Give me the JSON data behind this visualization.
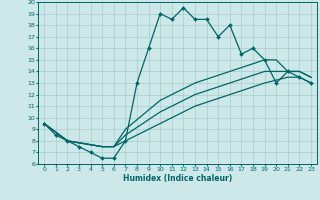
{
  "xlabel": "Humidex (Indice chaleur)",
  "bg_color": "#cce8e8",
  "grid_color": "#aacccc",
  "line_color": "#006666",
  "xlim": [
    -0.5,
    23.5
  ],
  "ylim": [
    6,
    20
  ],
  "xticks": [
    0,
    1,
    2,
    3,
    4,
    5,
    6,
    7,
    8,
    9,
    10,
    11,
    12,
    13,
    14,
    15,
    16,
    17,
    18,
    19,
    20,
    21,
    22,
    23
  ],
  "yticks": [
    6,
    7,
    8,
    9,
    10,
    11,
    12,
    13,
    14,
    15,
    16,
    17,
    18,
    19,
    20
  ],
  "series": [
    {
      "x": [
        0,
        1,
        2,
        3,
        4,
        5,
        6,
        7,
        8,
        9,
        10,
        11,
        12,
        13,
        14,
        15,
        16,
        17,
        18,
        19,
        20,
        21,
        22,
        23
      ],
      "y": [
        9.5,
        8.5,
        8.0,
        7.5,
        7.0,
        6.5,
        6.5,
        8.0,
        13.0,
        16.0,
        19.0,
        18.5,
        19.5,
        18.5,
        18.5,
        17.0,
        18.0,
        15.5,
        16.0,
        15.0,
        13.0,
        14.0,
        13.5,
        13.0
      ],
      "marker": true,
      "linewidth": 0.9
    },
    {
      "x": [
        0,
        2,
        5,
        6,
        7,
        10,
        13,
        16,
        19,
        21,
        22,
        23
      ],
      "y": [
        9.5,
        8.0,
        7.5,
        7.5,
        8.0,
        9.5,
        11.0,
        12.0,
        13.0,
        13.5,
        13.5,
        13.0
      ],
      "marker": false,
      "linewidth": 0.9
    },
    {
      "x": [
        0,
        2,
        5,
        6,
        7,
        10,
        13,
        16,
        19,
        21,
        22,
        23
      ],
      "y": [
        9.5,
        8.0,
        7.5,
        7.5,
        8.5,
        10.5,
        12.0,
        13.0,
        14.0,
        14.0,
        14.0,
        13.5
      ],
      "marker": false,
      "linewidth": 0.9
    },
    {
      "x": [
        0,
        2,
        5,
        6,
        7,
        10,
        13,
        16,
        19,
        20,
        21,
        22,
        23
      ],
      "y": [
        9.5,
        8.0,
        7.5,
        7.5,
        9.0,
        11.5,
        13.0,
        14.0,
        15.0,
        15.0,
        14.0,
        14.0,
        13.5
      ],
      "marker": false,
      "linewidth": 0.9
    }
  ]
}
